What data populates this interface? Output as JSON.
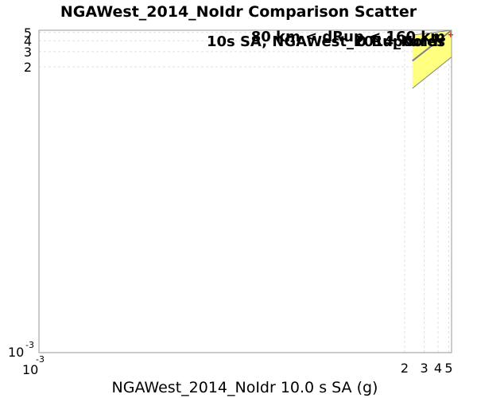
{
  "chart_data": {
    "type": "scatter",
    "title": "NGAWest_2014_NoIdr Comparison Scatter",
    "xlabel": "NGAWest_2014_NoIdr 10.0 s SA (g)",
    "ylabel": "",
    "xscale": "log",
    "yscale": "log",
    "xlim": [
      0.001,
      5.3
    ],
    "ylim": [
      0.001,
      5.3
    ],
    "grid": true,
    "x_ticks": [
      {
        "value": 2,
        "label": "2"
      },
      {
        "value": 3,
        "label": "3"
      },
      {
        "value": 4,
        "label": "4"
      },
      {
        "value": 5,
        "label": "5"
      }
    ],
    "y_ticks": [
      {
        "value": 2,
        "label": "2"
      },
      {
        "value": 3,
        "label": "3"
      },
      {
        "value": 4,
        "label": "4"
      },
      {
        "value": 5,
        "label": "5"
      }
    ],
    "corner_tick": {
      "base": "10",
      "exponent": "-3"
    },
    "band": {
      "x_start": 2.35,
      "x_end": 5.3,
      "lower_start": 1.13,
      "lower_end": 2.6,
      "upper_start": 4.65,
      "upper_end": 5.3,
      "color": "#ffff80"
    },
    "one_to_one_line": {
      "x_start": 2.35,
      "y_start": 2.35,
      "x_end": 5.3,
      "y_end": 5.3,
      "color": "#808080"
    },
    "points": [
      {
        "x": 5.3,
        "y": 4.7,
        "color": "#e02020"
      }
    ],
    "annotations": [
      {
        "text": "80 km < dRup < 160 km",
        "anchor": "end"
      },
      {
        "text": "10s SA, NGAWest_2014_NoIdr",
        "anchor": "end"
      },
      {
        "text": "0 Ruptures",
        "anchor": "end"
      }
    ]
  }
}
